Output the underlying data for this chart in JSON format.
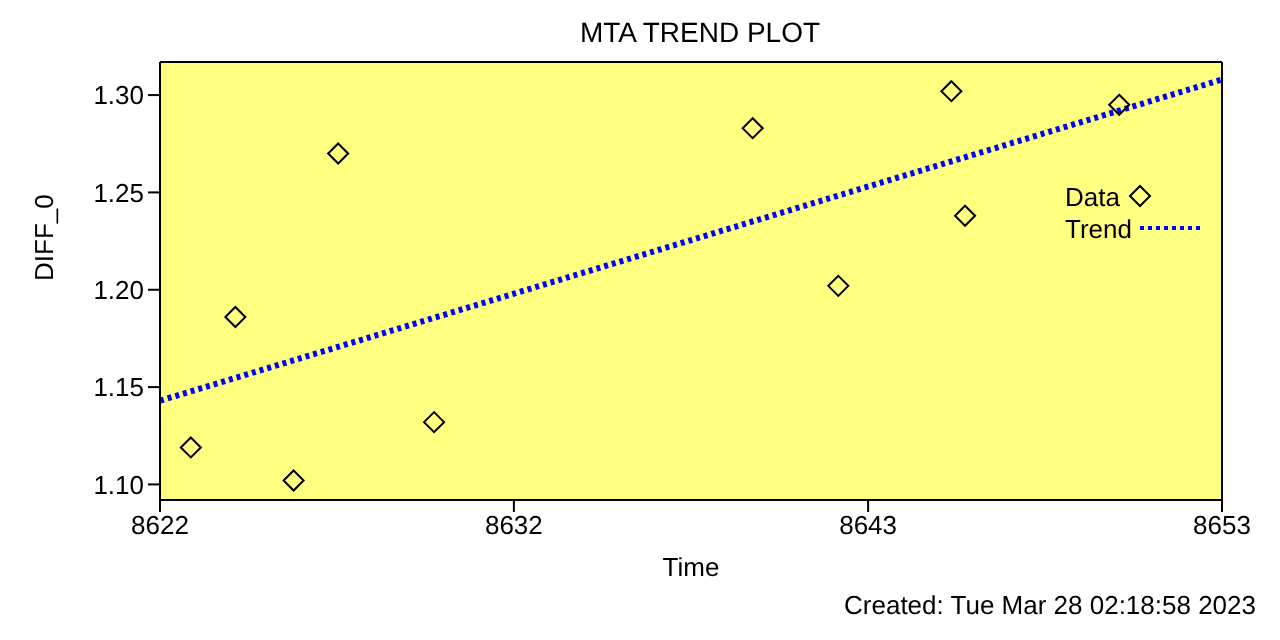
{
  "chart_data": {
    "type": "scatter",
    "title": "MTA TREND PLOT",
    "xlabel": "Time",
    "ylabel": "DIFF_0",
    "xlim": [
      8622,
      8653
    ],
    "xticks": [
      8622,
      {
        "value": 8632.33,
        "label": "8632"
      },
      {
        "value": 8642.67,
        "label": "8643"
      },
      8653
    ],
    "ylim": [
      1.092,
      1.317
    ],
    "yticks": [
      {
        "value": 1.1,
        "label": "1.10"
      },
      {
        "value": 1.15,
        "label": "1.15"
      },
      {
        "value": 1.2,
        "label": "1.20"
      },
      {
        "value": 1.25,
        "label": "1.25"
      },
      {
        "value": 1.3,
        "label": "1.30"
      }
    ],
    "grid": false,
    "legend": "top right",
    "marker": "diamond",
    "series": [
      {
        "name": "Data",
        "color": "#000000",
        "x": [
          8622.9,
          8624.2,
          8625.9,
          8627.2,
          8630.0,
          8639.3,
          8641.8,
          8645.1,
          8645.5,
          8650.0
        ],
        "values": [
          1.119,
          1.186,
          1.102,
          1.27,
          1.132,
          1.283,
          1.202,
          1.302,
          1.238,
          1.295
        ]
      },
      {
        "name": "Trend",
        "type": "line",
        "color": "#0000ff",
        "line_style": "dotted",
        "marker": "none",
        "x": [
          8622,
          8653
        ],
        "values": [
          1.143,
          1.308
        ]
      }
    ],
    "annotations": [
      "Created: Tue Mar 28 02:18:58 2023"
    ]
  }
}
